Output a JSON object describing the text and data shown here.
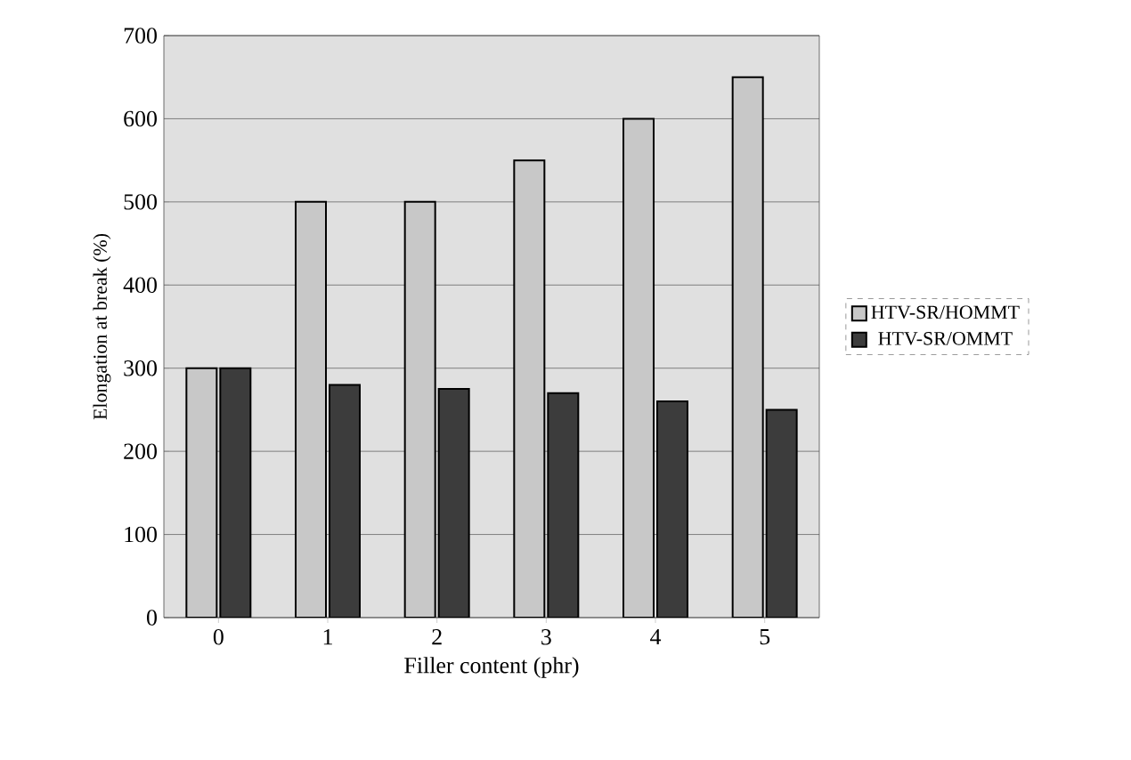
{
  "chart_data": {
    "type": "bar",
    "xlabel": "Filler content (phr)",
    "ylabel": "Elongation at break (%)",
    "categories": [
      "0",
      "1",
      "2",
      "3",
      "4",
      "5"
    ],
    "series": [
      {
        "name": "HTV-SR/HOMMT",
        "color": "#c8c8c8",
        "values": [
          300,
          500,
          500,
          550,
          600,
          650
        ]
      },
      {
        "name": "HTV-SR/OMMT",
        "color": "#3c3c3c",
        "values": [
          300,
          280,
          275,
          270,
          260,
          250
        ]
      }
    ],
    "ylim": [
      0,
      700
    ],
    "yticks": [
      0,
      100,
      200,
      300,
      400,
      500,
      600,
      700
    ],
    "grid": "y",
    "legend": "right"
  }
}
